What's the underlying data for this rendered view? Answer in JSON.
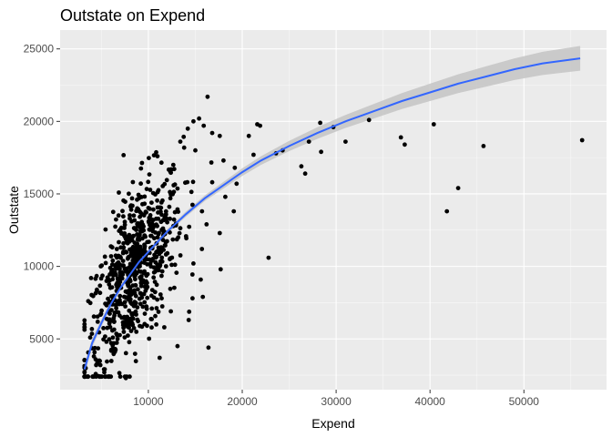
{
  "chart_data": {
    "type": "scatter",
    "title": "Outstate on Expend",
    "xlabel": "Expend",
    "ylabel": "Outstate",
    "xlim": [
      600,
      58800
    ],
    "ylim": [
      1500,
      26300
    ],
    "x_ticks": [
      10000,
      20000,
      30000,
      40000,
      50000
    ],
    "x_tick_labels": [
      "10000",
      "20000",
      "30000",
      "40000",
      "50000"
    ],
    "y_ticks": [
      5000,
      10000,
      15000,
      20000,
      25000
    ],
    "y_tick_labels": [
      "5000",
      "10000",
      "15000",
      "20000",
      "25000"
    ],
    "grid": true,
    "legend": "none",
    "colors": {
      "panel_background": "#ebebeb",
      "grid_major": "#ffffff",
      "points": "#000000",
      "smooth_line": "#3366ff",
      "confidence_band": "#c4c4c4"
    },
    "smooth": {
      "x": [
        3200,
        4000,
        5000,
        6000,
        7000,
        8000,
        9000,
        10000,
        12000,
        14000,
        16000,
        18000,
        20000,
        22000,
        25000,
        28000,
        31000,
        34000,
        37000,
        40000,
        43000,
        46000,
        49000,
        52000,
        56000
      ],
      "y": [
        2900,
        4700,
        6100,
        7400,
        8500,
        9400,
        10300,
        11000,
        12400,
        13600,
        14700,
        15600,
        16500,
        17300,
        18300,
        19200,
        20000,
        20700,
        21400,
        22000,
        22600,
        23100,
        23600,
        24000,
        24350
      ],
      "band_halfwidth": [
        350,
        300,
        250,
        220,
        200,
        190,
        180,
        170,
        170,
        180,
        200,
        230,
        260,
        300,
        350,
        400,
        450,
        500,
        550,
        600,
        650,
        700,
        750,
        800,
        850
      ]
    },
    "points": [
      {
        "x": 16300,
        "y": 21700
      },
      {
        "x": 28300,
        "y": 19900
      },
      {
        "x": 33500,
        "y": 20100
      },
      {
        "x": 40400,
        "y": 19800
      },
      {
        "x": 36900,
        "y": 18900
      },
      {
        "x": 37300,
        "y": 18400
      },
      {
        "x": 45700,
        "y": 18300
      },
      {
        "x": 56200,
        "y": 18700
      },
      {
        "x": 43000,
        "y": 15400
      },
      {
        "x": 41800,
        "y": 13800
      },
      {
        "x": 31000,
        "y": 18600
      },
      {
        "x": 29700,
        "y": 19600
      },
      {
        "x": 27100,
        "y": 18600
      },
      {
        "x": 26300,
        "y": 16900
      },
      {
        "x": 26700,
        "y": 16400
      },
      {
        "x": 28400,
        "y": 17900
      },
      {
        "x": 24300,
        "y": 18000
      },
      {
        "x": 23600,
        "y": 17800
      },
      {
        "x": 21200,
        "y": 17700
      },
      {
        "x": 21900,
        "y": 19700
      },
      {
        "x": 21600,
        "y": 19800
      },
      {
        "x": 20700,
        "y": 19000
      },
      {
        "x": 22800,
        "y": 10600
      },
      {
        "x": 18200,
        "y": 14800
      },
      {
        "x": 19400,
        "y": 15700
      },
      {
        "x": 19100,
        "y": 13800
      },
      {
        "x": 19200,
        "y": 16800
      },
      {
        "x": 18000,
        "y": 17300
      },
      {
        "x": 17600,
        "y": 19000
      },
      {
        "x": 16800,
        "y": 19200
      },
      {
        "x": 17600,
        "y": 12300
      },
      {
        "x": 16400,
        "y": 4400
      },
      {
        "x": 17700,
        "y": 9800
      },
      {
        "x": 15000,
        "y": 18000
      },
      {
        "x": 14200,
        "y": 19500
      },
      {
        "x": 14800,
        "y": 20000
      },
      {
        "x": 15400,
        "y": 20200
      },
      {
        "x": 15900,
        "y": 19700
      },
      {
        "x": 13400,
        "y": 18600
      },
      {
        "x": 13100,
        "y": 4500
      },
      {
        "x": 14300,
        "y": 6300
      },
      {
        "x": 14700,
        "y": 7800
      },
      {
        "x": 15800,
        "y": 7900
      },
      {
        "x": 14800,
        "y": 10200
      },
      {
        "x": 15700,
        "y": 11200
      },
      {
        "x": 16200,
        "y": 12900
      },
      {
        "x": 16800,
        "y": 15800
      },
      {
        "x": 11200,
        "y": 3700
      },
      {
        "x": 11700,
        "y": 5800
      },
      {
        "x": 12400,
        "y": 6900
      },
      {
        "x": 7600,
        "y": 2300
      },
      {
        "x": 5300,
        "y": 2700
      },
      {
        "x": 4200,
        "y": 3800
      },
      {
        "x": 3800,
        "y": 5100
      },
      {
        "x": 3600,
        "y": 7600
      },
      {
        "x": 3900,
        "y": 9200
      }
    ],
    "dense_cluster": {
      "count": 720,
      "x_center": 8500,
      "x_spread": 2600,
      "x_min": 3200,
      "x_max": 17000,
      "trend": "follows fit line",
      "y_spread": 2700,
      "y_min": 2400,
      "y_max": 20500
    }
  }
}
